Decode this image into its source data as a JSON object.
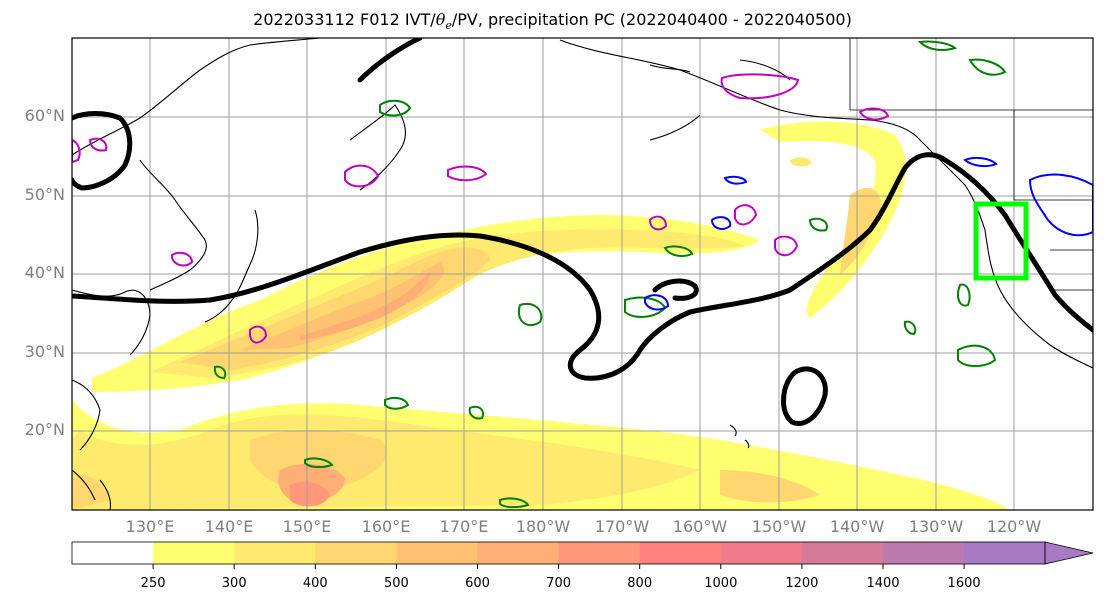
{
  "title": {
    "prefix": "2022033112 F012 IVT/",
    "theta": "θ",
    "theta_sub": "e",
    "suffix": "/PV, precipitation PC (2022040400 - 2022040500)"
  },
  "map": {
    "lat_labels": [
      "60°N",
      "50°N",
      "40°N",
      "30°N",
      "20°N"
    ],
    "lon_labels": [
      "130°E",
      "140°E",
      "150°E",
      "160°E",
      "170°E",
      "180°W",
      "170°W",
      "160°W",
      "150°W",
      "140°W",
      "130°W",
      "120°W"
    ],
    "colors": {
      "theta_e_contour": "#000000",
      "pv_positive": "#c000c0",
      "pv_negative": "#0000ff",
      "precip_contour": "#008000",
      "highlight_box": "#00ff00",
      "coastline": "#000000",
      "gridline": "#9e9e9e"
    }
  },
  "colorbar": {
    "ticks": [
      "250",
      "300",
      "400",
      "500",
      "600",
      "700",
      "800",
      "1000",
      "1200",
      "1400",
      "1600"
    ],
    "colors": [
      "#ffffff",
      "#ffff70",
      "#ffea70",
      "#ffd670",
      "#ffc272",
      "#ffae76",
      "#ff987a",
      "#ff807c",
      "#ef7c88",
      "#d67a9a",
      "#bc7ab0",
      "#a87ac4"
    ]
  }
}
